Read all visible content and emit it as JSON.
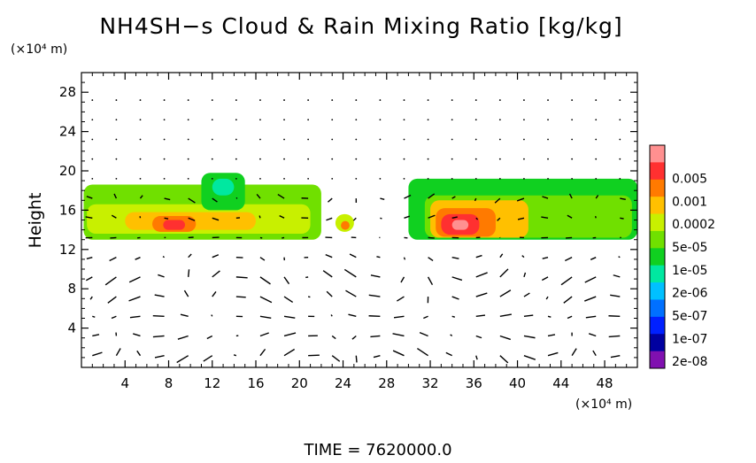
{
  "chart_data": {
    "type": "heatmap",
    "title": "NH4SH−s Cloud & Rain Mixing Ratio [kg/kg]",
    "y_unit_label": "(×10⁴ m)",
    "x_unit_label": "(×10⁴ m)",
    "ylabel": "Height",
    "xlabel": "",
    "xlim": [
      0,
      51
    ],
    "ylim": [
      0,
      30
    ],
    "x_ticks": [
      "4",
      "8",
      "12",
      "16",
      "20",
      "24",
      "28",
      "32",
      "36",
      "40",
      "44",
      "48"
    ],
    "y_ticks": [
      "4",
      "8",
      "12",
      "16",
      "20",
      "24",
      "28"
    ],
    "footer": "TIME = 7620000.0",
    "colorbar": {
      "labels": [
        "0.005",
        "0.001",
        "0.0002",
        "5e-05",
        "1e-05",
        "2e-06",
        "5e-07",
        "1e-07",
        "2e-08"
      ],
      "colors": [
        "#ff9090",
        "#ff3030",
        "#ff7a00",
        "#ffc000",
        "#c8f000",
        "#70e000",
        "#10d020",
        "#00e8a0",
        "#00c0ff",
        "#0070ff",
        "#0020ff",
        "#0000a0",
        "#8010b0"
      ]
    },
    "regions": [
      {
        "x0": 0.2,
        "x1": 22,
        "y0": 13,
        "y1": 18.6,
        "level": 7
      },
      {
        "x0": 0.5,
        "x1": 21,
        "y0": 13.6,
        "y1": 16.6,
        "level": 8
      },
      {
        "x0": 4,
        "x1": 16,
        "y0": 14,
        "y1": 15.8,
        "level": 9
      },
      {
        "x0": 6.5,
        "x1": 10.5,
        "y0": 13.8,
        "y1": 15.4,
        "level": 10
      },
      {
        "x0": 7.5,
        "x1": 9.5,
        "y0": 14.0,
        "y1": 15.0,
        "level": 11
      },
      {
        "x0": 11,
        "x1": 15,
        "y0": 16,
        "y1": 19.8,
        "level": 6
      },
      {
        "x0": 12,
        "x1": 14,
        "y0": 17.5,
        "y1": 19.2,
        "level": 5
      },
      {
        "x0": 23.3,
        "x1": 25,
        "y0": 13.8,
        "y1": 15.6,
        "level": 8
      },
      {
        "x0": 23.8,
        "x1": 24.6,
        "y0": 14.0,
        "y1": 14.9,
        "level": 10
      },
      {
        "x0": 30,
        "x1": 51,
        "y0": 13.0,
        "y1": 19.2,
        "level": 6
      },
      {
        "x0": 31.5,
        "x1": 50.5,
        "y0": 13.2,
        "y1": 17.5,
        "level": 7
      },
      {
        "x0": 32,
        "x1": 41,
        "y0": 13.2,
        "y1": 17.0,
        "level": 9
      },
      {
        "x0": 32.5,
        "x1": 38,
        "y0": 13.3,
        "y1": 16.2,
        "level": 10
      },
      {
        "x0": 33,
        "x1": 36.5,
        "y0": 13.5,
        "y1": 15.6,
        "level": 11
      },
      {
        "x0": 34,
        "x1": 35.5,
        "y0": 14.0,
        "y1": 15.0,
        "level": 12
      }
    ]
  }
}
